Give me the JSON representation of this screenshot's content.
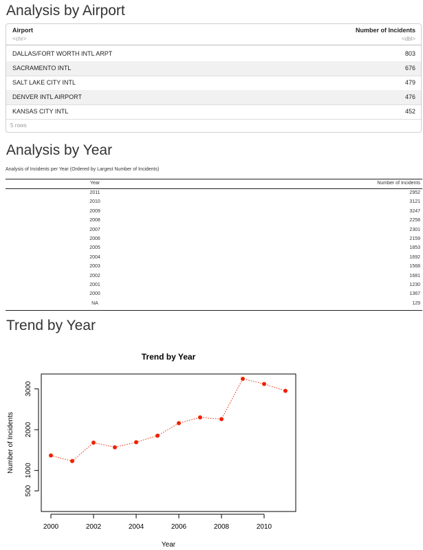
{
  "sections": {
    "airport_title": "Analysis by Airport",
    "year_title": "Analysis by Year",
    "trend_title": "Trend by Year"
  },
  "airport_table": {
    "columns": [
      {
        "name": "Airport",
        "type": "<chr>"
      },
      {
        "name": "Number of Incidents",
        "type": "<dbl>"
      }
    ],
    "rows": [
      {
        "airport": "DALLAS/FORT WORTH INTL ARPT",
        "count": "803"
      },
      {
        "airport": "SACRAMENTO INTL",
        "count": "676"
      },
      {
        "airport": "SALT LAKE CITY INTL",
        "count": "479"
      },
      {
        "airport": "DENVER INTL AIRPORT",
        "count": "476"
      },
      {
        "airport": "KANSAS CITY INTL",
        "count": "452"
      }
    ],
    "footer": "5 rows"
  },
  "year_table": {
    "caption": "Analysis of Incidents per Year (Ordered by Largest Number of Incidents)",
    "columns": [
      "Year",
      "Number of Incidents"
    ],
    "rows": [
      {
        "year": "2011",
        "count": "2952"
      },
      {
        "year": "2010",
        "count": "3121"
      },
      {
        "year": "2009",
        "count": "3247"
      },
      {
        "year": "2008",
        "count": "2258"
      },
      {
        "year": "2007",
        "count": "2301"
      },
      {
        "year": "2006",
        "count": "2159"
      },
      {
        "year": "2005",
        "count": "1853"
      },
      {
        "year": "2004",
        "count": "1692"
      },
      {
        "year": "2003",
        "count": "1568"
      },
      {
        "year": "2002",
        "count": "1681"
      },
      {
        "year": "2001",
        "count": "1230"
      },
      {
        "year": "2000",
        "count": "1367"
      },
      {
        "year": "NA",
        "count": "129"
      }
    ]
  },
  "chart_data": {
    "type": "line",
    "title": "Trend by Year",
    "xlabel": "Year",
    "ylabel": "Number of Incidents",
    "x": [
      2000,
      2001,
      2002,
      2003,
      2004,
      2005,
      2006,
      2007,
      2008,
      2009,
      2010,
      2011
    ],
    "y": [
      1367,
      1230,
      1681,
      1568,
      1692,
      1853,
      2159,
      2301,
      2258,
      3247,
      3121,
      2952
    ],
    "xlim": [
      2000,
      2011
    ],
    "ylim": [
      129,
      3247
    ],
    "xticks": [
      2000,
      2002,
      2004,
      2006,
      2008,
      2010
    ],
    "yticks": [
      500,
      1000,
      2000,
      3000
    ],
    "line_style": "dotted",
    "color": "#ee2200",
    "grid": false
  }
}
